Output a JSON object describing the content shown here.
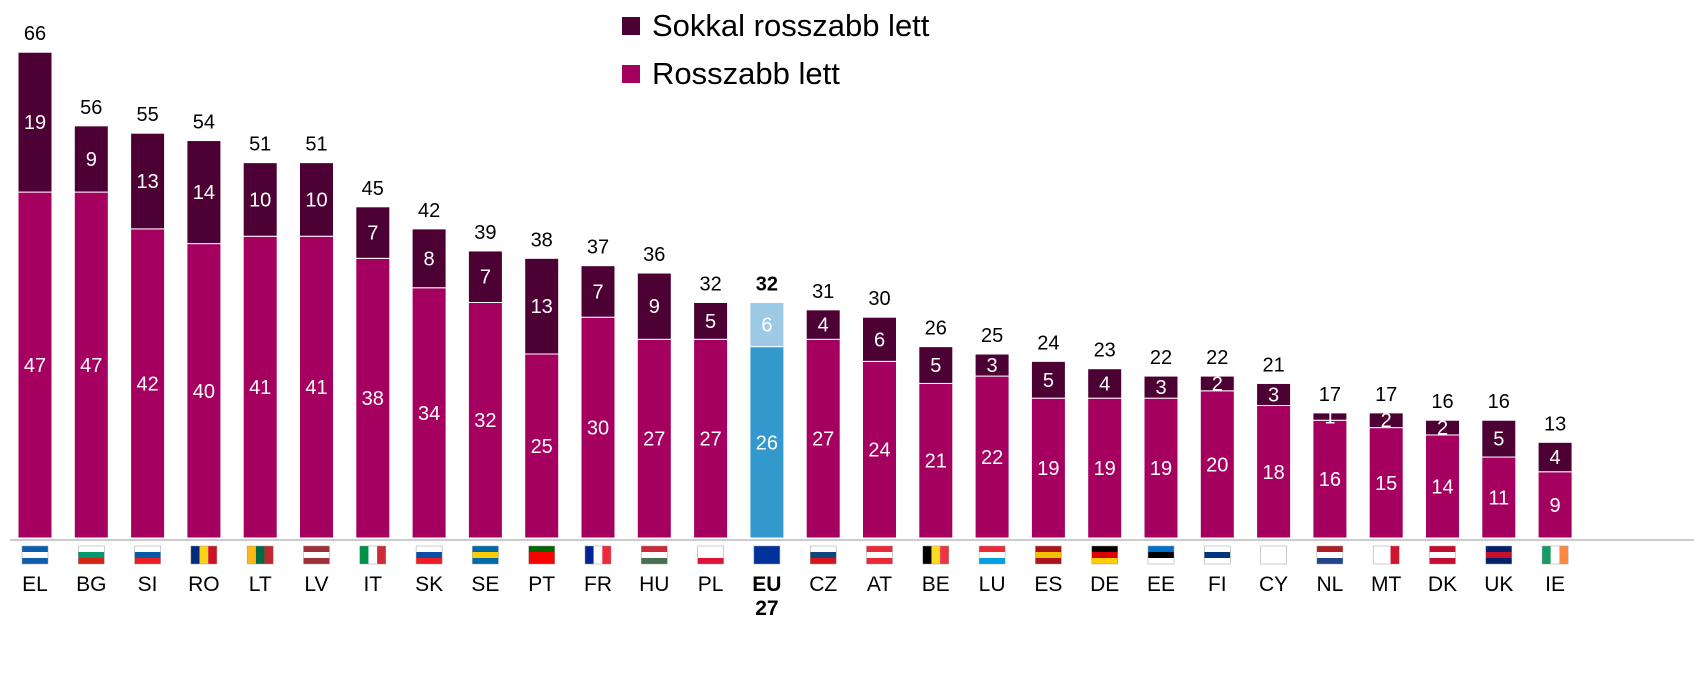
{
  "chart_data": {
    "type": "stacked_bar",
    "categories": [
      "EL",
      "BG",
      "SI",
      "RO",
      "LT",
      "LV",
      "IT",
      "SK",
      "SE",
      "PT",
      "FR",
      "HU",
      "PL",
      "EU\n27",
      "CZ",
      "AT",
      "BE",
      "LU",
      "ES",
      "DE",
      "EE",
      "FI",
      "CY",
      "NL",
      "MT",
      "DK",
      "UK",
      "IE"
    ],
    "series": [
      {
        "name": "Rosszabb lett",
        "color": "#a50060",
        "values": [
          47,
          47,
          42,
          40,
          41,
          41,
          38,
          34,
          32,
          25,
          30,
          27,
          27,
          26,
          27,
          24,
          21,
          22,
          19,
          19,
          19,
          20,
          18,
          16,
          15,
          14,
          11,
          9
        ]
      },
      {
        "name": "Sokkal rosszabb lett",
        "color": "#4d0033",
        "values": [
          19,
          9,
          13,
          14,
          10,
          10,
          7,
          8,
          7,
          13,
          7,
          9,
          5,
          6,
          4,
          6,
          5,
          3,
          5,
          4,
          3,
          2,
          3,
          1,
          2,
          2,
          5,
          4
        ]
      }
    ],
    "totals": [
      66,
      56,
      55,
      54,
      51,
      51,
      45,
      42,
      39,
      38,
      37,
      36,
      32,
      32,
      31,
      30,
      26,
      25,
      24,
      23,
      22,
      22,
      21,
      17,
      17,
      16,
      16,
      13
    ],
    "highlight_index": 13,
    "highlight_colors": [
      "#3399cc",
      "#9dcbe6"
    ]
  }
}
